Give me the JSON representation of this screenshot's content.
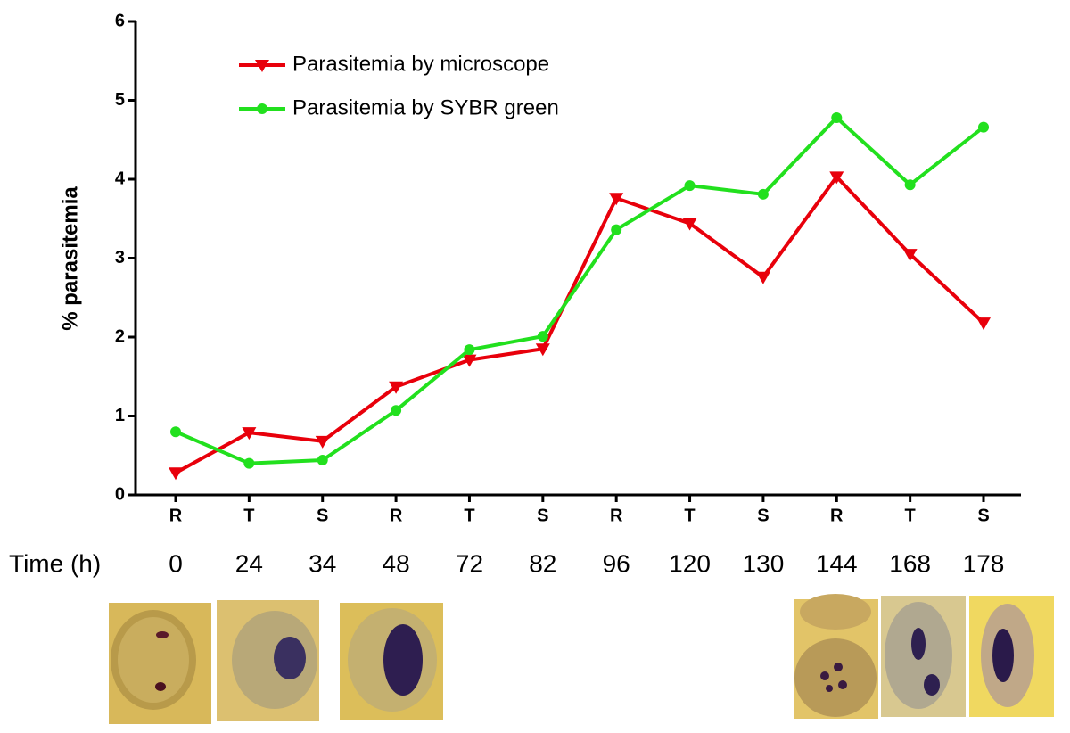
{
  "chart_data": {
    "type": "line",
    "y_label": "% parasitemia",
    "categories": [
      "R",
      "T",
      "S",
      "R",
      "T",
      "S",
      "R",
      "T",
      "S",
      "R",
      "T",
      "S"
    ],
    "time_label": "Time (h)",
    "times": [
      0,
      24,
      34,
      48,
      72,
      82,
      96,
      120,
      130,
      144,
      168,
      178
    ],
    "series": [
      {
        "name": "Parasitemia by microscope",
        "color": "#e8000b",
        "marker": "triangle-down",
        "values": [
          0.28,
          0.79,
          0.68,
          1.37,
          1.71,
          1.85,
          3.76,
          3.44,
          2.76,
          4.03,
          3.05,
          2.18
        ]
      },
      {
        "name": "Parasitemia by SYBR green",
        "color": "#22e01e",
        "marker": "circle",
        "values": [
          0.8,
          0.4,
          0.44,
          1.07,
          1.84,
          2.01,
          3.36,
          3.92,
          3.81,
          4.78,
          3.93,
          4.66
        ]
      }
    ],
    "ylim": [
      0,
      6
    ],
    "yticks": [
      0,
      1,
      2,
      3,
      4,
      5,
      6
    ],
    "grid": false
  }
}
